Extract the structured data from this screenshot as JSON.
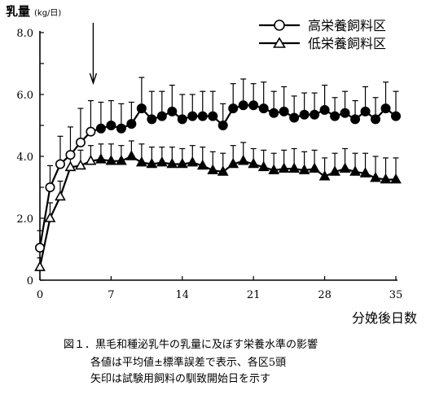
{
  "chart_data": {
    "type": "line",
    "ylabel": "乳量",
    "ylabel_unit": "(kg/日)",
    "xlabel": "分娩後日数",
    "xlim": [
      0,
      35
    ],
    "ylim": [
      0,
      8
    ],
    "xticks": [
      0,
      7,
      14,
      21,
      28,
      35
    ],
    "yticks": [
      0,
      2,
      4,
      6,
      8
    ],
    "ytick_labels": [
      "0",
      "2.0",
      "4.0",
      "6.0",
      "8.0"
    ],
    "legend_position": "top-right",
    "arrow_day": 5,
    "series": [
      {
        "name": "高栄養飼料区",
        "marker": "circle",
        "points": [
          {
            "x": 0,
            "y": 1.05,
            "err": 0.55,
            "filled": false
          },
          {
            "x": 1,
            "y": 3.0,
            "err": 0.7,
            "filled": false
          },
          {
            "x": 2,
            "y": 3.75,
            "err": 0.9,
            "filled": false
          },
          {
            "x": 3,
            "y": 4.05,
            "err": 0.9,
            "filled": false
          },
          {
            "x": 4,
            "y": 4.45,
            "err": 1.1,
            "filled": false
          },
          {
            "x": 5,
            "y": 4.8,
            "err": 1.0,
            "filled": false
          },
          {
            "x": 6,
            "y": 4.9,
            "err": 0.85,
            "filled": true
          },
          {
            "x": 7,
            "y": 5.0,
            "err": 0.8,
            "filled": true
          },
          {
            "x": 8,
            "y": 4.9,
            "err": 0.8,
            "filled": true
          },
          {
            "x": 9,
            "y": 5.05,
            "err": 0.7,
            "filled": true
          },
          {
            "x": 10,
            "y": 5.55,
            "err": 1.0,
            "filled": true
          },
          {
            "x": 11,
            "y": 5.2,
            "err": 0.9,
            "filled": true
          },
          {
            "x": 12,
            "y": 5.3,
            "err": 0.8,
            "filled": true
          },
          {
            "x": 13,
            "y": 5.45,
            "err": 0.85,
            "filled": true
          },
          {
            "x": 14,
            "y": 5.2,
            "err": 0.8,
            "filled": true
          },
          {
            "x": 15,
            "y": 5.3,
            "err": 0.7,
            "filled": true
          },
          {
            "x": 16,
            "y": 5.3,
            "err": 0.8,
            "filled": true
          },
          {
            "x": 17,
            "y": 5.3,
            "err": 0.8,
            "filled": true
          },
          {
            "x": 18,
            "y": 5.0,
            "err": 0.7,
            "filled": true
          },
          {
            "x": 19,
            "y": 5.55,
            "err": 0.8,
            "filled": true
          },
          {
            "x": 20,
            "y": 5.65,
            "err": 0.85,
            "filled": true
          },
          {
            "x": 21,
            "y": 5.65,
            "err": 0.7,
            "filled": true
          },
          {
            "x": 22,
            "y": 5.55,
            "err": 0.85,
            "filled": true
          },
          {
            "x": 23,
            "y": 5.4,
            "err": 0.7,
            "filled": true
          },
          {
            "x": 24,
            "y": 5.45,
            "err": 0.8,
            "filled": true
          },
          {
            "x": 25,
            "y": 5.25,
            "err": 0.7,
            "filled": true
          },
          {
            "x": 26,
            "y": 5.35,
            "err": 0.7,
            "filled": true
          },
          {
            "x": 27,
            "y": 5.35,
            "err": 0.7,
            "filled": true
          },
          {
            "x": 28,
            "y": 5.5,
            "err": 0.8,
            "filled": true
          },
          {
            "x": 29,
            "y": 5.3,
            "err": 0.6,
            "filled": true
          },
          {
            "x": 30,
            "y": 5.4,
            "err": 0.7,
            "filled": true
          },
          {
            "x": 31,
            "y": 5.2,
            "err": 0.6,
            "filled": true
          },
          {
            "x": 32,
            "y": 5.45,
            "err": 0.8,
            "filled": true
          },
          {
            "x": 33,
            "y": 5.2,
            "err": 0.7,
            "filled": true
          },
          {
            "x": 34,
            "y": 5.55,
            "err": 0.85,
            "filled": true
          },
          {
            "x": 35,
            "y": 5.3,
            "err": 0.8,
            "filled": true
          }
        ]
      },
      {
        "name": "低栄養飼料区",
        "marker": "triangle",
        "points": [
          {
            "x": 0,
            "y": 0.42,
            "err": 0.3,
            "filled": false
          },
          {
            "x": 1,
            "y": 2.0,
            "err": 0.5,
            "filled": false
          },
          {
            "x": 2,
            "y": 2.7,
            "err": 0.5,
            "filled": false
          },
          {
            "x": 3,
            "y": 3.65,
            "err": 0.4,
            "filled": false
          },
          {
            "x": 4,
            "y": 3.7,
            "err": 0.5,
            "filled": false
          },
          {
            "x": 5,
            "y": 3.85,
            "err": 0.5,
            "filled": false
          },
          {
            "x": 6,
            "y": 3.9,
            "err": 0.5,
            "filled": true
          },
          {
            "x": 7,
            "y": 3.85,
            "err": 0.55,
            "filled": true
          },
          {
            "x": 8,
            "y": 3.85,
            "err": 0.5,
            "filled": true
          },
          {
            "x": 9,
            "y": 4.0,
            "err": 0.5,
            "filled": true
          },
          {
            "x": 10,
            "y": 3.8,
            "err": 0.6,
            "filled": true
          },
          {
            "x": 11,
            "y": 3.75,
            "err": 0.55,
            "filled": true
          },
          {
            "x": 12,
            "y": 3.8,
            "err": 0.5,
            "filled": true
          },
          {
            "x": 13,
            "y": 3.75,
            "err": 0.55,
            "filled": true
          },
          {
            "x": 14,
            "y": 3.75,
            "err": 0.5,
            "filled": true
          },
          {
            "x": 15,
            "y": 3.8,
            "err": 0.55,
            "filled": true
          },
          {
            "x": 16,
            "y": 3.7,
            "err": 0.6,
            "filled": true
          },
          {
            "x": 17,
            "y": 3.55,
            "err": 0.6,
            "filled": true
          },
          {
            "x": 18,
            "y": 3.5,
            "err": 0.6,
            "filled": true
          },
          {
            "x": 19,
            "y": 3.75,
            "err": 0.6,
            "filled": true
          },
          {
            "x": 20,
            "y": 3.85,
            "err": 0.6,
            "filled": true
          },
          {
            "x": 21,
            "y": 3.75,
            "err": 0.5,
            "filled": true
          },
          {
            "x": 22,
            "y": 3.65,
            "err": 0.55,
            "filled": true
          },
          {
            "x": 23,
            "y": 3.55,
            "err": 0.55,
            "filled": true
          },
          {
            "x": 24,
            "y": 3.6,
            "err": 0.6,
            "filled": true
          },
          {
            "x": 25,
            "y": 3.6,
            "err": 0.65,
            "filled": true
          },
          {
            "x": 26,
            "y": 3.55,
            "err": 0.6,
            "filled": true
          },
          {
            "x": 27,
            "y": 3.6,
            "err": 0.6,
            "filled": true
          },
          {
            "x": 28,
            "y": 3.35,
            "err": 0.6,
            "filled": true
          },
          {
            "x": 29,
            "y": 3.5,
            "err": 0.6,
            "filled": true
          },
          {
            "x": 30,
            "y": 3.6,
            "err": 0.65,
            "filled": true
          },
          {
            "x": 31,
            "y": 3.5,
            "err": 0.6,
            "filled": true
          },
          {
            "x": 32,
            "y": 3.45,
            "err": 0.65,
            "filled": true
          },
          {
            "x": 33,
            "y": 3.3,
            "err": 0.7,
            "filled": true
          },
          {
            "x": 34,
            "y": 3.25,
            "err": 0.7,
            "filled": true
          },
          {
            "x": 35,
            "y": 3.25,
            "err": 0.7,
            "filled": true
          }
        ]
      }
    ]
  },
  "caption": {
    "line1": "図１．黒毛和種泌乳牛の乳量に及ぼす栄養水準の影響",
    "line2": "各値は平均値±標準誤差で表示、各区5頭",
    "line3": "矢印は試験用飼料の馴致開始日を示す"
  }
}
